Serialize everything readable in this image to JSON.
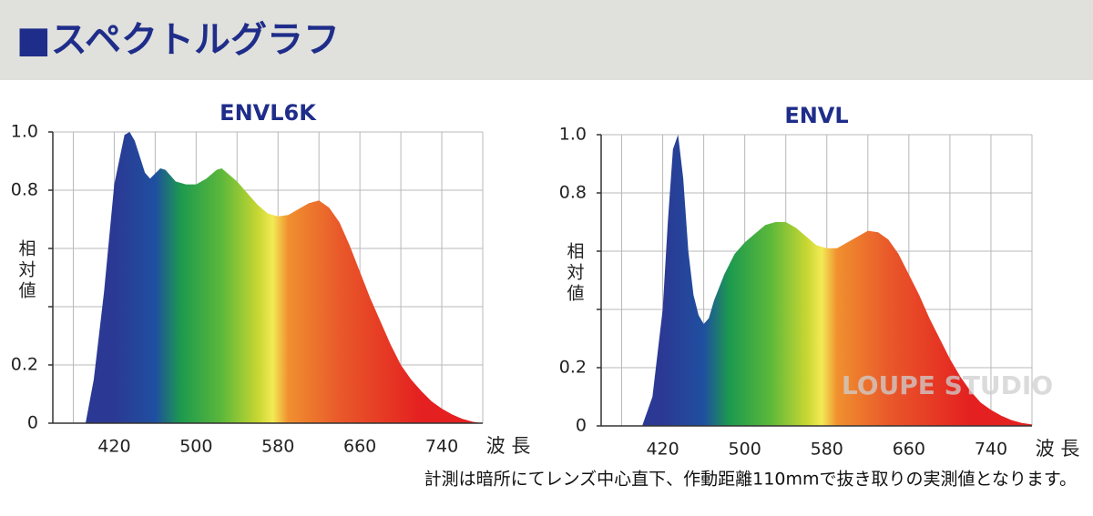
{
  "header": {
    "title": "■スペクトルグラフ"
  },
  "note": "計測は暗所にてレンズ中心直下、作動距離110mmで抜き取りの実測値となります。",
  "watermark": "LOUPE STUDIO",
  "chart_data": [
    {
      "type": "area",
      "title": "ENVL6K",
      "ylabel": "相対値",
      "xlabel": "波 長",
      "xlim": [
        360,
        780
      ],
      "ylim": [
        0,
        1
      ],
      "xticks": [
        {
          "value": 380,
          "label": null
        },
        420,
        {
          "value": 460,
          "label": null
        },
        500,
        {
          "value": 540,
          "label": null
        },
        580,
        {
          "value": 620,
          "label": null
        },
        660,
        {
          "value": 700,
          "label": null
        },
        740
      ],
      "yticks": [
        0,
        0.2,
        {
          "value": 0.4,
          "label": null
        },
        {
          "value": 0.6,
          "label": null
        },
        0.8,
        {
          "value": 1,
          "label": "1.0"
        }
      ],
      "grid": true,
      "color_stops": [
        {
          "nm": 420,
          "color": "#2b3994"
        },
        {
          "nm": 460,
          "color": "#1f4fa0"
        },
        {
          "nm": 485,
          "color": "#1c9a4e"
        },
        {
          "nm": 525,
          "color": "#5cb83a"
        },
        {
          "nm": 560,
          "color": "#c6d632"
        },
        {
          "nm": 575,
          "color": "#f3ea55"
        },
        {
          "nm": 590,
          "color": "#f0902f"
        },
        {
          "nm": 640,
          "color": "#e9592a"
        },
        {
          "nm": 720,
          "color": "#e42020"
        }
      ],
      "series": [
        {
          "name": "ENVL6K",
          "x": [
            392,
            400,
            410,
            420,
            430,
            435,
            440,
            450,
            455,
            465,
            470,
            480,
            490,
            500,
            510,
            520,
            525,
            530,
            540,
            550,
            560,
            570,
            580,
            590,
            600,
            610,
            620,
            630,
            640,
            650,
            660,
            670,
            680,
            690,
            700,
            710,
            720,
            730,
            740,
            750,
            760,
            770,
            780
          ],
          "values": [
            0,
            0.15,
            0.45,
            0.82,
            0.99,
            1.0,
            0.97,
            0.86,
            0.84,
            0.875,
            0.87,
            0.83,
            0.82,
            0.82,
            0.84,
            0.87,
            0.875,
            0.86,
            0.83,
            0.79,
            0.75,
            0.72,
            0.71,
            0.715,
            0.735,
            0.755,
            0.765,
            0.74,
            0.69,
            0.61,
            0.52,
            0.43,
            0.35,
            0.27,
            0.2,
            0.15,
            0.11,
            0.075,
            0.05,
            0.03,
            0.015,
            0.005,
            0
          ]
        }
      ]
    },
    {
      "type": "area",
      "title": "ENVL",
      "ylabel": "相対値",
      "xlabel": "波 長",
      "xlim": [
        360,
        780
      ],
      "ylim": [
        0,
        1
      ],
      "xticks": [
        {
          "value": 380,
          "label": null
        },
        420,
        {
          "value": 460,
          "label": null
        },
        500,
        {
          "value": 540,
          "label": null
        },
        580,
        {
          "value": 620,
          "label": null
        },
        660,
        {
          "value": 700,
          "label": null
        },
        740
      ],
      "yticks": [
        0,
        0.2,
        {
          "value": 0.4,
          "label": null
        },
        {
          "value": 0.6,
          "label": null
        },
        0.8,
        {
          "value": 1,
          "label": "1.0"
        }
      ],
      "grid": true,
      "color_stops": [
        {
          "nm": 420,
          "color": "#2b3994"
        },
        {
          "nm": 460,
          "color": "#1f4fa0"
        },
        {
          "nm": 485,
          "color": "#1c9a4e"
        },
        {
          "nm": 525,
          "color": "#5cb83a"
        },
        {
          "nm": 560,
          "color": "#c6d632"
        },
        {
          "nm": 575,
          "color": "#f3ea55"
        },
        {
          "nm": 590,
          "color": "#f0902f"
        },
        {
          "nm": 640,
          "color": "#e9592a"
        },
        {
          "nm": 720,
          "color": "#e42020"
        }
      ],
      "series": [
        {
          "name": "ENVL",
          "x": [
            400,
            410,
            420,
            425,
            430,
            435,
            440,
            445,
            450,
            455,
            460,
            465,
            470,
            480,
            490,
            500,
            510,
            520,
            530,
            540,
            550,
            560,
            570,
            580,
            590,
            600,
            610,
            620,
            630,
            640,
            650,
            660,
            670,
            680,
            690,
            700,
            710,
            720,
            730,
            740,
            750,
            760,
            770,
            780
          ],
          "values": [
            0,
            0.1,
            0.4,
            0.7,
            0.95,
            1.0,
            0.85,
            0.6,
            0.45,
            0.38,
            0.35,
            0.37,
            0.43,
            0.52,
            0.59,
            0.63,
            0.66,
            0.69,
            0.7,
            0.7,
            0.68,
            0.65,
            0.62,
            0.61,
            0.61,
            0.63,
            0.65,
            0.67,
            0.665,
            0.64,
            0.59,
            0.52,
            0.45,
            0.37,
            0.3,
            0.23,
            0.17,
            0.12,
            0.08,
            0.055,
            0.035,
            0.02,
            0.01,
            0.005
          ]
        }
      ]
    }
  ]
}
